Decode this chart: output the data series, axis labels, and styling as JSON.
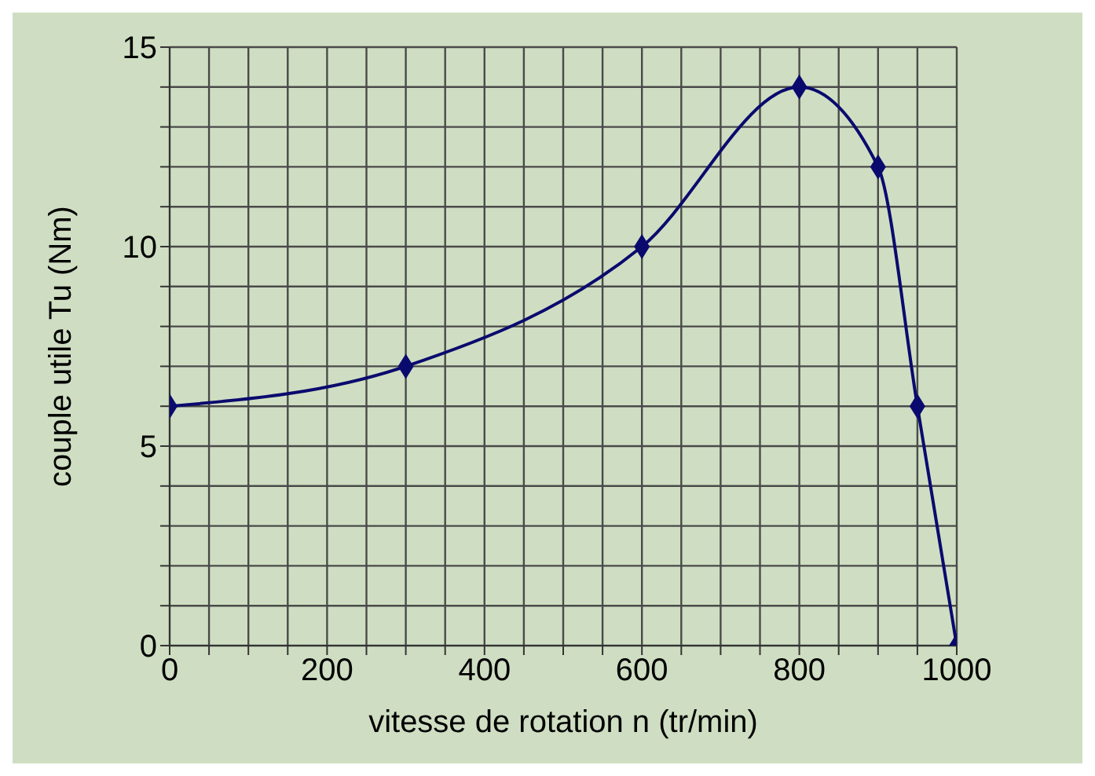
{
  "chart_data": {
    "type": "line",
    "xlabel": "vitesse de rotation n (tr/min)",
    "ylabel": "couple utile Tu (Nm)",
    "x": [
      0,
      300,
      600,
      800,
      900,
      950,
      1000
    ],
    "series": [
      {
        "color": "#0a0a6e",
        "values": [
          6,
          7,
          10,
          14,
          12,
          6,
          0
        ]
      }
    ],
    "xlim": [
      0,
      1000
    ],
    "xticks": [
      0,
      {
        "value": 50,
        "label": null
      },
      200,
      {
        "value": 100,
        "label": null
      },
      {
        "value": 150,
        "label": null
      },
      {
        "value": 250,
        "label": null
      },
      {
        "value": 300,
        "label": null
      },
      {
        "value": 350,
        "label": null
      },
      400,
      {
        "value": 450,
        "label": null
      },
      {
        "value": 500,
        "label": null
      },
      {
        "value": 550,
        "label": null
      },
      600,
      {
        "value": 650,
        "label": null
      },
      {
        "value": 700,
        "label": null
      },
      {
        "value": 750,
        "label": null
      },
      800,
      {
        "value": 850,
        "label": null
      },
      {
        "value": 900,
        "label": null
      },
      {
        "value": 950,
        "label": null
      },
      1000
    ],
    "ylim": [
      0,
      15
    ],
    "yticks": [
      0,
      {
        "value": 1,
        "label": null
      },
      {
        "value": 2,
        "label": null
      },
      {
        "value": 3,
        "label": null
      },
      {
        "value": 4,
        "label": null
      },
      5,
      {
        "value": 6,
        "label": null
      },
      {
        "value": 7,
        "label": null
      },
      {
        "value": 8,
        "label": null
      },
      {
        "value": 9,
        "label": null
      },
      10,
      {
        "value": 11,
        "label": null
      },
      {
        "value": 12,
        "label": null
      },
      {
        "value": 13,
        "label": null
      },
      {
        "value": 14,
        "label": null
      },
      15
    ],
    "grid": true,
    "marker": "diamond",
    "line_style": "solid"
  }
}
